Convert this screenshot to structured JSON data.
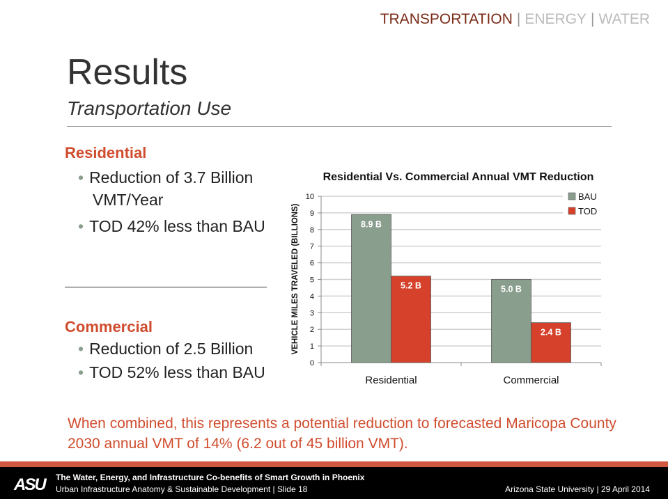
{
  "nav": {
    "items": [
      "TRANSPORTATION",
      "ENERGY",
      "WATER"
    ],
    "separator": "|"
  },
  "header": {
    "title": "Results",
    "subtitle": "Transportation Use"
  },
  "residential": {
    "heading": "Residential",
    "bullets": [
      "Reduction of 3.7 Billion",
      "VMT/Year",
      "TOD 42% less than BAU"
    ]
  },
  "commercial": {
    "heading": "Commercial",
    "bullets": [
      "Reduction of 2.5 Billion",
      "TOD 52% less than BAU"
    ]
  },
  "summary": "When combined, this represents a potential reduction to forecasted Maricopa County 2030 annual VMT of 14% (6.2 out of 45 billion VMT).",
  "footer": {
    "logo": "ASU",
    "line1": "The Water, Energy, and Infrastructure Co-benefits of Smart Growth in Phoenix",
    "line2": "Urban Infrastructure Anatomy & Sustainable Development | Slide 18",
    "right": "Arizona State University | 29 April 2014"
  },
  "chart_data": {
    "type": "bar",
    "title": "Residential Vs. Commercial Annual VMT Reduction",
    "xlabel": "",
    "ylabel": "VEHICLE MILES TRAVELED (BILLIONS)",
    "categories": [
      "Residential",
      "Commercial"
    ],
    "ylim": [
      0,
      10
    ],
    "yticks": [
      "0",
      "1",
      "2",
      "3",
      "4",
      "5",
      "6",
      "7",
      "8",
      "9",
      "10"
    ],
    "grid": true,
    "legend_position": "top-right",
    "series": [
      {
        "name": "BAU",
        "values": [
          8.9,
          5.0
        ],
        "labels": [
          "8.9 B",
          "5.0 B"
        ],
        "color": "#8a9e8e"
      },
      {
        "name": "TOD",
        "values": [
          5.2,
          2.4
        ],
        "labels": [
          "5.2 B",
          "2.4 B"
        ],
        "color": "#d5412a"
      }
    ]
  }
}
